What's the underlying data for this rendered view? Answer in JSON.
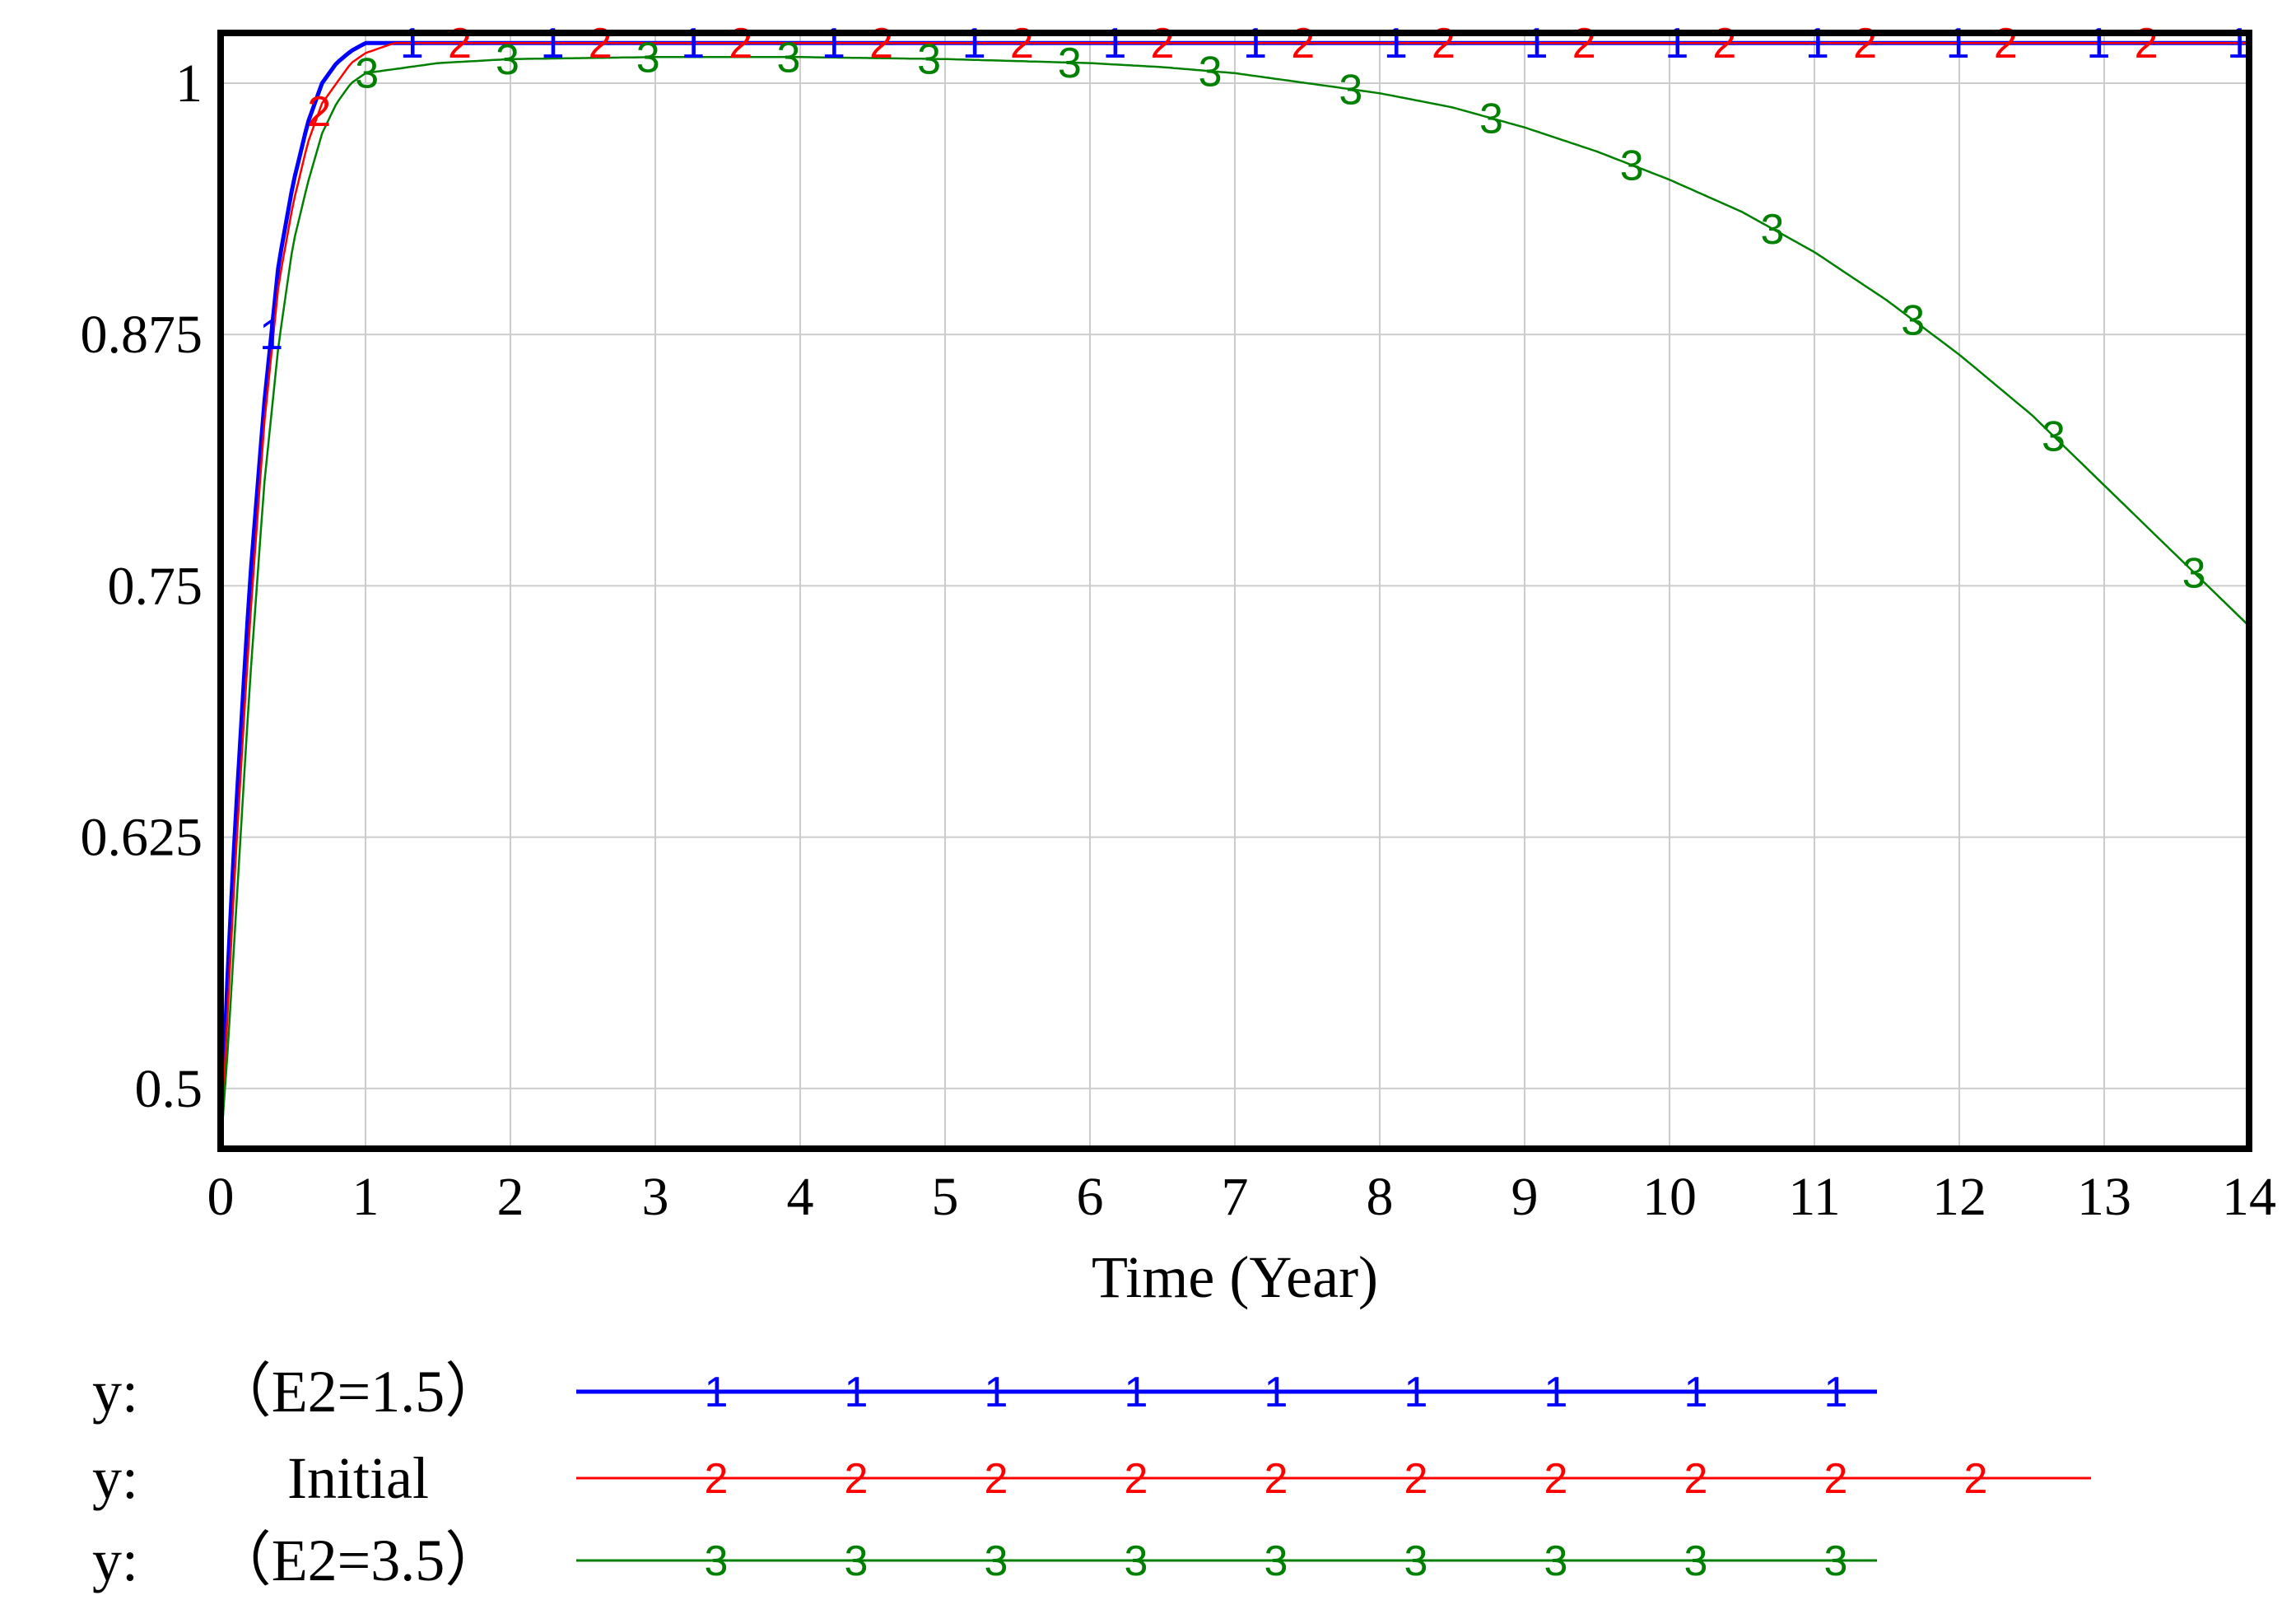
{
  "chart_data": {
    "type": "line",
    "title": "",
    "xlabel": "Time (Year)",
    "ylabel": "",
    "xlim": [
      0,
      14
    ],
    "ylim": [
      0.47,
      1.025
    ],
    "xticks": [
      "0",
      "1",
      "2",
      "3",
      "4",
      "5",
      "6",
      "7",
      "8",
      "9",
      "10",
      "11",
      "12",
      "13",
      "14"
    ],
    "yticks": [
      {
        "value": 0.5,
        "label": "0.5"
      },
      {
        "value": 0.625,
        "label": "0.625"
      },
      {
        "value": 0.75,
        "label": "0.75"
      },
      {
        "value": 0.875,
        "label": "0.875"
      },
      {
        "value": 1.0,
        "label": "1"
      }
    ],
    "grid": true,
    "legend_position": "bottom",
    "series": [
      {
        "name": "(E2=1.5)",
        "legend_prefix": "y:",
        "legend_label": "（E2=1.5）",
        "marker": "1",
        "color": "#0000ff",
        "x": [
          0,
          0.05,
          0.1,
          0.15,
          0.2,
          0.3,
          0.4,
          0.5,
          0.6,
          0.7,
          0.8,
          0.9,
          1.0,
          2,
          4,
          6,
          8,
          10,
          12,
          14
        ],
        "y": [
          0.47,
          0.56,
          0.63,
          0.69,
          0.75,
          0.84,
          0.91,
          0.95,
          0.98,
          1.0,
          1.01,
          1.016,
          1.02,
          1.02,
          1.02,
          1.02,
          1.02,
          1.02,
          1.02,
          1.02
        ]
      },
      {
        "name": "Initial",
        "legend_prefix": "y:",
        "legend_label": "Initial",
        "marker": "2",
        "color": "#ff0000",
        "x": [
          0,
          0.05,
          0.1,
          0.15,
          0.2,
          0.3,
          0.4,
          0.5,
          0.6,
          0.7,
          0.8,
          0.9,
          1.0,
          1.2,
          2,
          4,
          6,
          8,
          10,
          12,
          14
        ],
        "y": [
          0.47,
          0.54,
          0.61,
          0.67,
          0.73,
          0.83,
          0.9,
          0.94,
          0.97,
          0.99,
          1.0,
          1.01,
          1.015,
          1.02,
          1.02,
          1.02,
          1.02,
          1.02,
          1.02,
          1.02,
          1.02
        ]
      },
      {
        "name": "(E2=3.5)",
        "legend_prefix": "y:",
        "legend_label": "（E2=3.5）",
        "marker": "3",
        "color": "#008000",
        "x": [
          0,
          0.05,
          0.1,
          0.15,
          0.2,
          0.3,
          0.4,
          0.5,
          0.6,
          0.7,
          0.8,
          0.9,
          1.0,
          1.5,
          2,
          3,
          4,
          5,
          6,
          6.5,
          7,
          7.5,
          8,
          8.5,
          9,
          9.5,
          10,
          10.5,
          11,
          11.5,
          12,
          12.5,
          13,
          13.5,
          14
        ],
        "y": [
          0.47,
          0.52,
          0.58,
          0.64,
          0.7,
          0.8,
          0.87,
          0.92,
          0.95,
          0.975,
          0.99,
          1.0,
          1.005,
          1.01,
          1.012,
          1.013,
          1.013,
          1.012,
          1.01,
          1.008,
          1.005,
          1.0,
          0.995,
          0.988,
          0.978,
          0.966,
          0.952,
          0.936,
          0.916,
          0.892,
          0.865,
          0.835,
          0.8,
          0.765,
          0.73
        ]
      }
    ]
  }
}
